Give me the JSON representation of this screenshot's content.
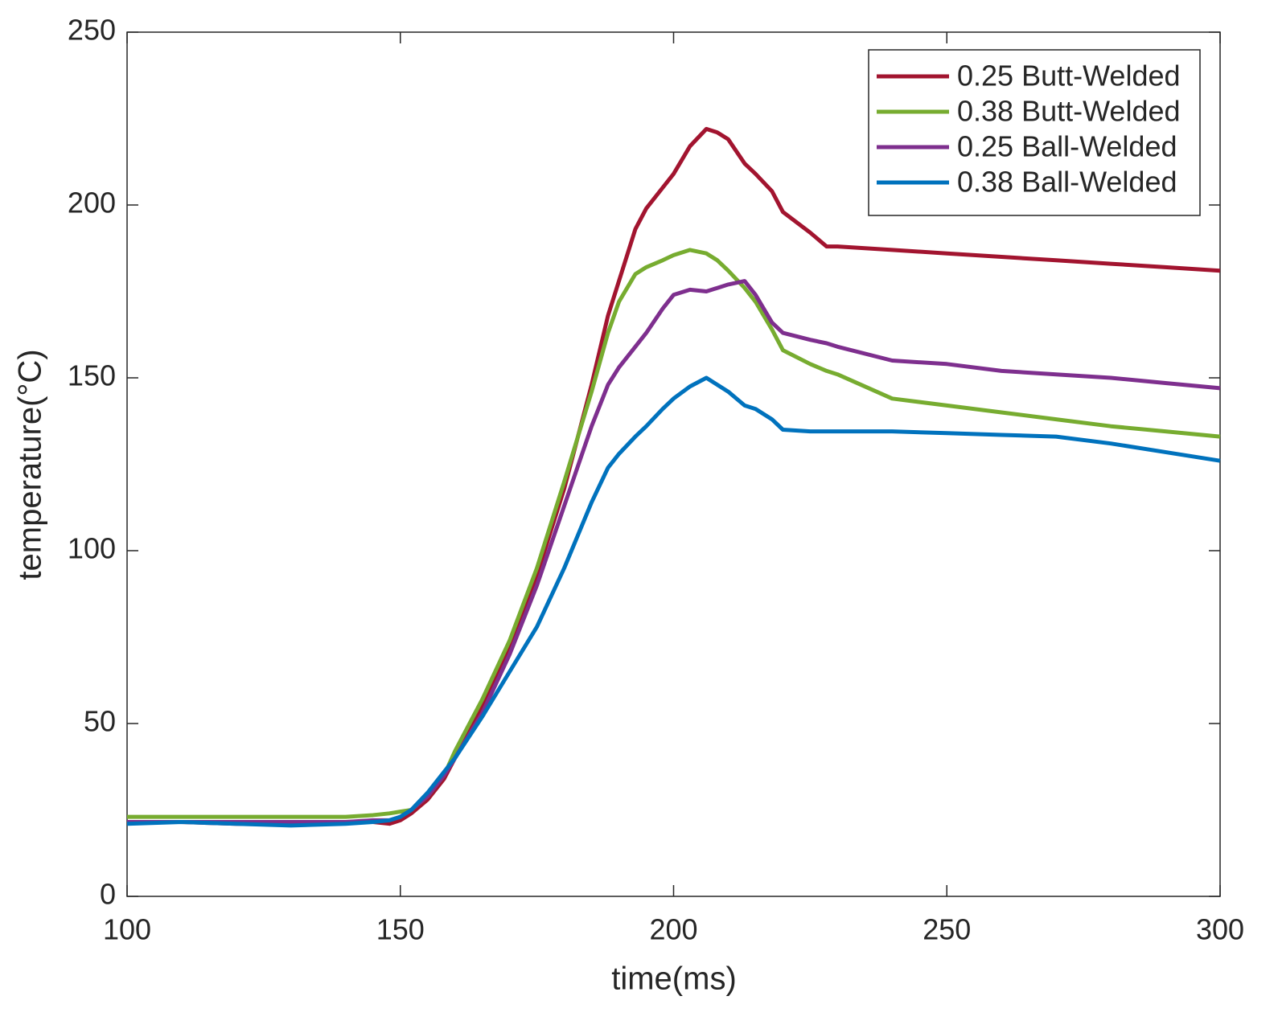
{
  "chart_data": {
    "type": "line",
    "xlabel": "time(ms)",
    "ylabel": "temperature(°C)",
    "x": [
      100,
      110,
      120,
      130,
      140,
      145,
      148,
      150,
      152,
      155,
      158,
      160,
      165,
      170,
      175,
      180,
      185,
      188,
      190,
      193,
      195,
      198,
      200,
      203,
      206,
      208,
      210,
      213,
      215,
      218,
      220,
      225,
      228,
      230,
      240,
      250,
      260,
      270,
      280,
      290,
      300
    ],
    "series": [
      {
        "name": "0.25 Butt-Welded",
        "color": "#a2142f",
        "values": [
          21.5,
          21.5,
          21,
          21,
          21.5,
          21.5,
          21,
          22,
          24,
          28,
          34,
          40,
          55,
          72,
          93,
          118,
          148,
          168,
          178,
          193,
          199,
          205,
          209,
          217,
          222,
          221,
          219,
          212,
          209,
          204,
          198,
          192,
          188,
          188,
          187,
          186,
          185,
          184,
          183,
          182,
          181
        ]
      },
      {
        "name": "0.38 Butt-Welded",
        "color": "#77ac30",
        "values": [
          23,
          23,
          23,
          23,
          23,
          23.5,
          24,
          24.5,
          25,
          29,
          35,
          42,
          57,
          74,
          95,
          120,
          146,
          163,
          172,
          180,
          182,
          184,
          185.5,
          187,
          186,
          184,
          181,
          176,
          172,
          164,
          158,
          154,
          152,
          151,
          144,
          142,
          140,
          138,
          136,
          134.5,
          133
        ]
      },
      {
        "name": "0.25 Ball-Welded",
        "color": "#7e2f8e",
        "values": [
          21.5,
          21.5,
          21.5,
          21.5,
          21.5,
          22,
          22,
          23,
          25,
          29,
          35,
          40,
          53,
          70,
          90,
          113,
          136,
          148,
          153,
          159,
          163,
          170,
          174,
          175.5,
          175,
          176,
          177,
          178,
          174,
          166,
          163,
          161,
          160,
          159,
          155,
          154,
          152,
          151,
          150,
          148.5,
          147
        ]
      },
      {
        "name": "0.38 Ball-Welded",
        "color": "#0072bd",
        "values": [
          21,
          21.5,
          21,
          20.5,
          21,
          21.5,
          22,
          23,
          25,
          30,
          36,
          40,
          52,
          65,
          78,
          95,
          114,
          124,
          128,
          133,
          136,
          141,
          144,
          147.5,
          150,
          148,
          146,
          142,
          141,
          138,
          135,
          134.5,
          134.5,
          134.5,
          134.5,
          134,
          133.5,
          133,
          131,
          128.5,
          126
        ]
      }
    ],
    "xlim": [
      100,
      300
    ],
    "xticks": [
      100,
      150,
      200,
      250,
      300
    ],
    "ylim": [
      0,
      250
    ],
    "yticks": [
      0,
      50,
      100,
      150,
      200,
      250
    ],
    "grid": false,
    "legend": "northeast"
  }
}
